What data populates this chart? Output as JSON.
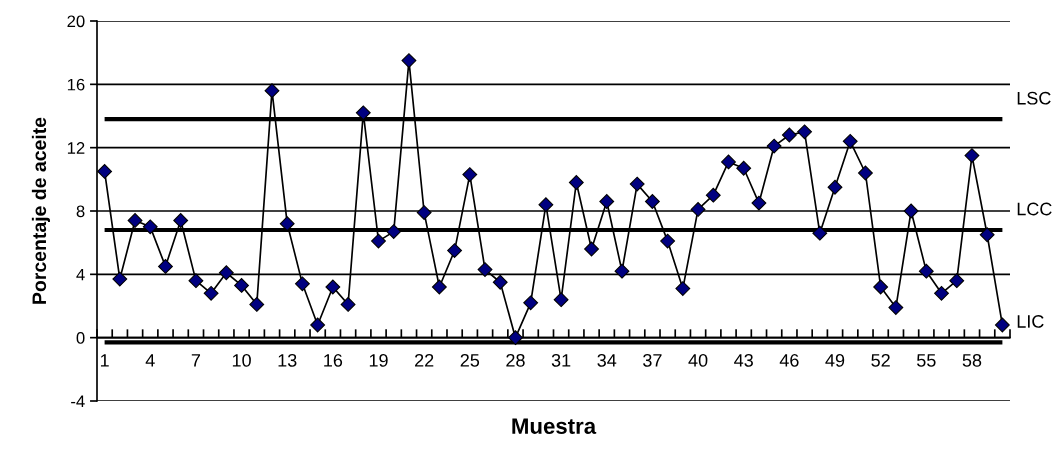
{
  "chart_data": {
    "type": "line",
    "xlabel": "Muestra",
    "ylabel": "Porcentaje de aceite",
    "categories": [
      "1",
      null,
      null,
      "4",
      null,
      null,
      "7",
      null,
      null,
      "10",
      null,
      null,
      "13",
      null,
      null,
      "16",
      null,
      null,
      "19",
      null,
      null,
      "22",
      null,
      null,
      "25",
      null,
      null,
      "28",
      null,
      null,
      "31",
      null,
      null,
      "34",
      null,
      null,
      "37",
      null,
      null,
      "40",
      null,
      null,
      "43",
      null,
      null,
      "46",
      null,
      null,
      "49",
      null,
      null,
      "52",
      null,
      null,
      "55",
      null,
      null,
      "58",
      null,
      null
    ],
    "series": [
      {
        "color": "#000080",
        "values": [
          10.5,
          3.7,
          7.4,
          7.0,
          4.5,
          7.4,
          3.6,
          2.8,
          4.1,
          3.3,
          2.1,
          15.6,
          7.2,
          3.4,
          0.8,
          3.2,
          2.1,
          14.2,
          6.1,
          6.7,
          17.5,
          7.9,
          3.2,
          5.5,
          10.3,
          4.3,
          3.5,
          0.0,
          2.2,
          8.4,
          2.4,
          9.8,
          5.6,
          8.6,
          4.2,
          9.7,
          8.6,
          6.1,
          3.1,
          8.1,
          9.0,
          11.1,
          10.7,
          8.5,
          12.1,
          12.8,
          13.0,
          6.6,
          9.5,
          12.4,
          10.4,
          3.2,
          1.9,
          8.0,
          4.2,
          2.8,
          3.6,
          11.5,
          6.5,
          0.8
        ]
      }
    ],
    "ylim": [
      -4,
      20
    ],
    "yticks": [
      -4,
      0,
      4,
      8,
      12,
      16,
      20
    ],
    "grid": "y",
    "marker": "diamond",
    "line_style": "solid",
    "ref_lines": [
      {
        "axis": "y",
        "value": 13.8,
        "label": "LSC",
        "color": "#000000"
      },
      {
        "axis": "y",
        "value": 6.8,
        "label": "LCC",
        "color": "#000000"
      },
      {
        "axis": "y",
        "value": -0.3,
        "label": "LIC",
        "color": "#000000"
      }
    ]
  }
}
